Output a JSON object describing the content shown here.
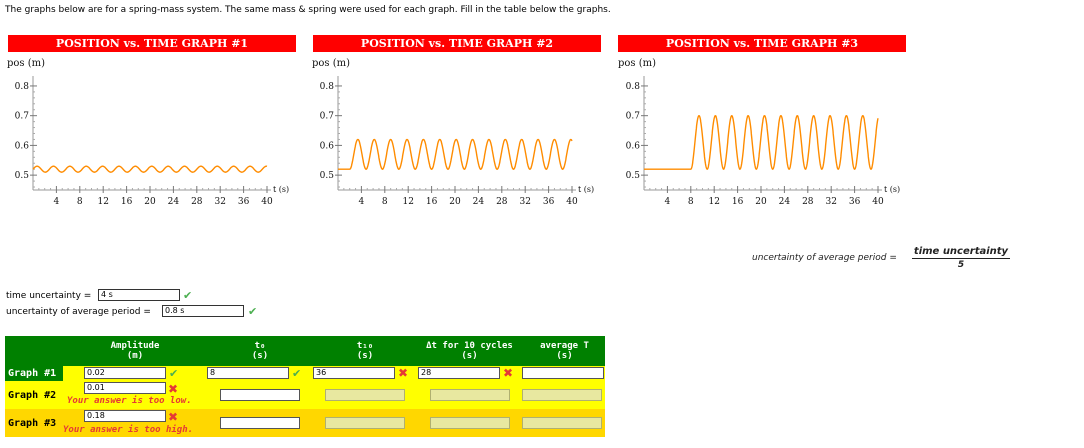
{
  "intro": "The graphs below are for a spring-mass system. The same mass & spring were used for each graph. Fill in the table below the graphs.",
  "graphs": [
    {
      "title": "POSITION vs. TIME GRAPH #1",
      "ylabel": "pos (m)",
      "xlabel": "t (s)",
      "amplitude": 0.02,
      "start_time": 0,
      "equilibrium": 0.52
    },
    {
      "title": "POSITION vs. TIME GRAPH #2",
      "ylabel": "pos (m)",
      "xlabel": "t (s)",
      "amplitude": 0.05,
      "start_time": 2,
      "equilibrium": 0.52
    },
    {
      "title": "POSITION vs. TIME GRAPH #3",
      "ylabel": "pos (m)",
      "xlabel": "t (s)",
      "amplitude": 0.09,
      "start_time": 8,
      "equilibrium": 0.61
    }
  ],
  "axes": {
    "y_ticks": [
      "0.5",
      "0.6",
      "0.7",
      "0.8"
    ],
    "y_values": [
      0.5,
      0.6,
      0.7,
      0.8
    ],
    "x_ticks": [
      "4",
      "8",
      "12",
      "16",
      "20",
      "24",
      "28",
      "32",
      "36",
      "40"
    ],
    "x_values": [
      4,
      8,
      12,
      16,
      20,
      24,
      28,
      32,
      36,
      40
    ],
    "period": 2.8,
    "xlim": [
      0,
      40
    ],
    "ylim": [
      0.45,
      0.82
    ]
  },
  "formula": {
    "label": "uncertainty of average period =",
    "numerator": "time uncertainty",
    "denominator": "5"
  },
  "uncertainty": {
    "time_label": "time uncertainty =",
    "time_value": "4 s",
    "period_label": "uncertainty of average period =",
    "period_value": "0.8 s"
  },
  "table": {
    "headers": {
      "amplitude": "Amplitude",
      "amplitude_unit": "(m)",
      "t0": "t₀",
      "t0_unit": "(s)",
      "t10": "t₁₀",
      "t10_unit": "(s)",
      "dt": "Δt for 10 cycles",
      "dt_unit": "(s)",
      "avgT": "average T",
      "avgT_unit": "(s)"
    },
    "rows": [
      {
        "label": "Graph #1",
        "amplitude": "0.02",
        "t0": "8",
        "t10": "36",
        "dt": "28",
        "avgT": "",
        "error": ""
      },
      {
        "label": "Graph #2",
        "amplitude": "0.01",
        "t0": "",
        "t10": "",
        "dt": "",
        "avgT": "",
        "error": "Your answer is too low."
      },
      {
        "label": "Graph #3",
        "amplitude": "0.18",
        "t0": "",
        "t10": "",
        "dt": "",
        "avgT": "",
        "error": "Your answer is too high."
      }
    ]
  },
  "colors": {
    "title_bg": "#ff0000",
    "curve": "#ff8c00",
    "header_bg": "#008000",
    "row1_bg": "#ffff00",
    "row2_bg": "#ffff00",
    "row3_bg": "#ffd700",
    "check": "#4caf50",
    "cross": "#e53935"
  }
}
